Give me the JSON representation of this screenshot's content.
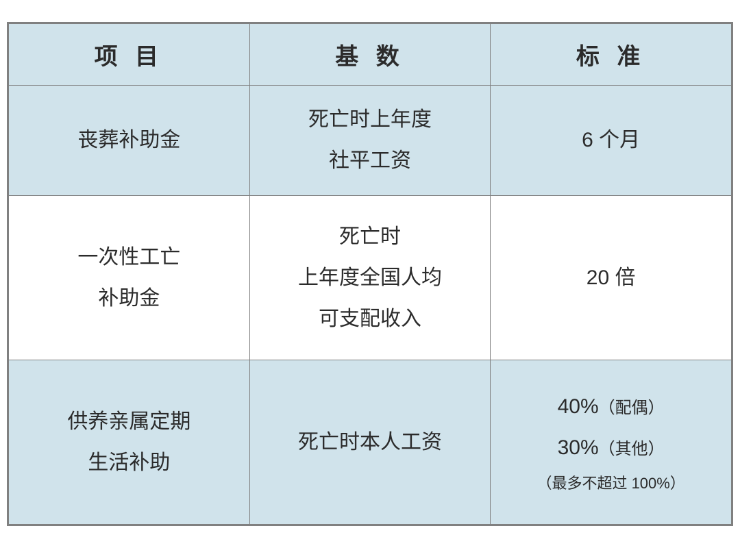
{
  "table": {
    "columns": [
      "项 目",
      "基 数",
      "标 准"
    ],
    "header_bg_color": "#d0e3eb",
    "alt_row_bg_color": "#d0e3eb",
    "white_row_bg_color": "#ffffff",
    "border_color": "#808080",
    "text_color": "#2b2b2b",
    "header_fontsize": 34,
    "cell_fontsize": 30,
    "note_fontsize": 22,
    "rows": [
      {
        "project": "丧葬补助金",
        "base_line1": "死亡时上年度",
        "base_line2": "社平工资",
        "standard": "6 个月",
        "bg": "alt"
      },
      {
        "project_line1": "一次性工亡",
        "project_line2": "补助金",
        "base_line1": "死亡时",
        "base_line2": "上年度全国人均",
        "base_line3": "可支配收入",
        "standard": "20 倍",
        "bg": "white"
      },
      {
        "project_line1": "供养亲属定期",
        "project_line2": "生活补助",
        "base": "死亡时本人工资",
        "standard_line1_pct": "40%",
        "standard_line1_sub": "（配偶）",
        "standard_line2_pct": "30%",
        "standard_line2_sub": "（其他）",
        "standard_note": "（最多不超过 100%）",
        "bg": "alt"
      }
    ]
  }
}
